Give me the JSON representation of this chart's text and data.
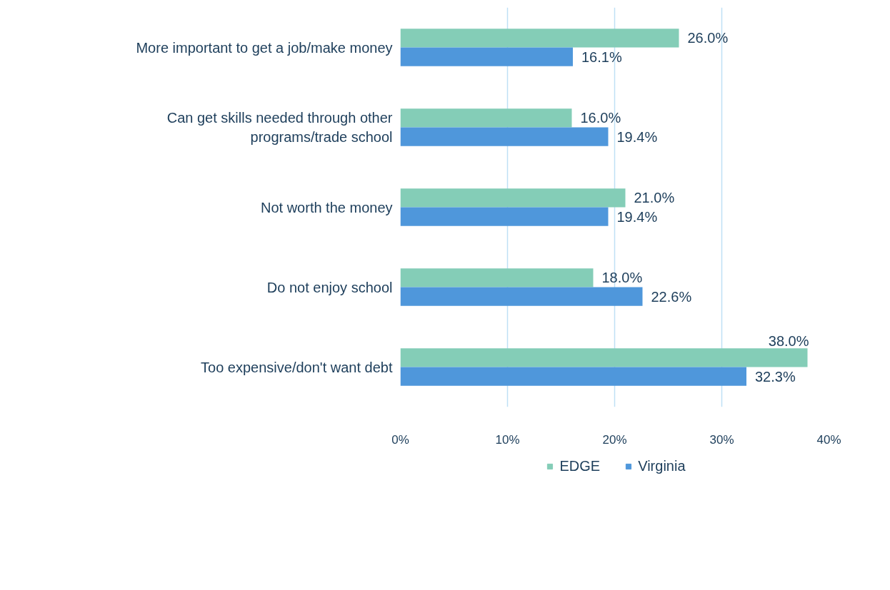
{
  "chart_data": {
    "type": "bar",
    "orientation": "horizontal",
    "categories": [
      "More important to get a job/make money",
      "Can get skills needed through other programs/trade school",
      "Not worth the money",
      "Do not enjoy school",
      "Too expensive/don't want debt"
    ],
    "series": [
      {
        "name": "EDGE",
        "color": "#84cdb7",
        "values": [
          26.0,
          16.0,
          21.0,
          18.0,
          38.0
        ],
        "value_labels": [
          "26.0%",
          "16.0%",
          "21.0%",
          "18.0%",
          "38.0%"
        ]
      },
      {
        "name": "Virginia",
        "color": "#4f97db",
        "values": [
          16.1,
          19.4,
          19.4,
          22.6,
          32.3
        ],
        "value_labels": [
          "16.1%",
          "19.4%",
          "19.4%",
          "22.6%",
          "32.3%"
        ]
      }
    ],
    "xlim": [
      0,
      40
    ],
    "xticks": [
      {
        "value": 0,
        "label": "0%"
      },
      {
        "value": 10,
        "label": "10%"
      },
      {
        "value": 20,
        "label": "20%"
      },
      {
        "value": 30,
        "label": "30%"
      },
      {
        "value": 40,
        "label": "40%"
      }
    ],
    "grid": "x",
    "legend": "bottom"
  }
}
